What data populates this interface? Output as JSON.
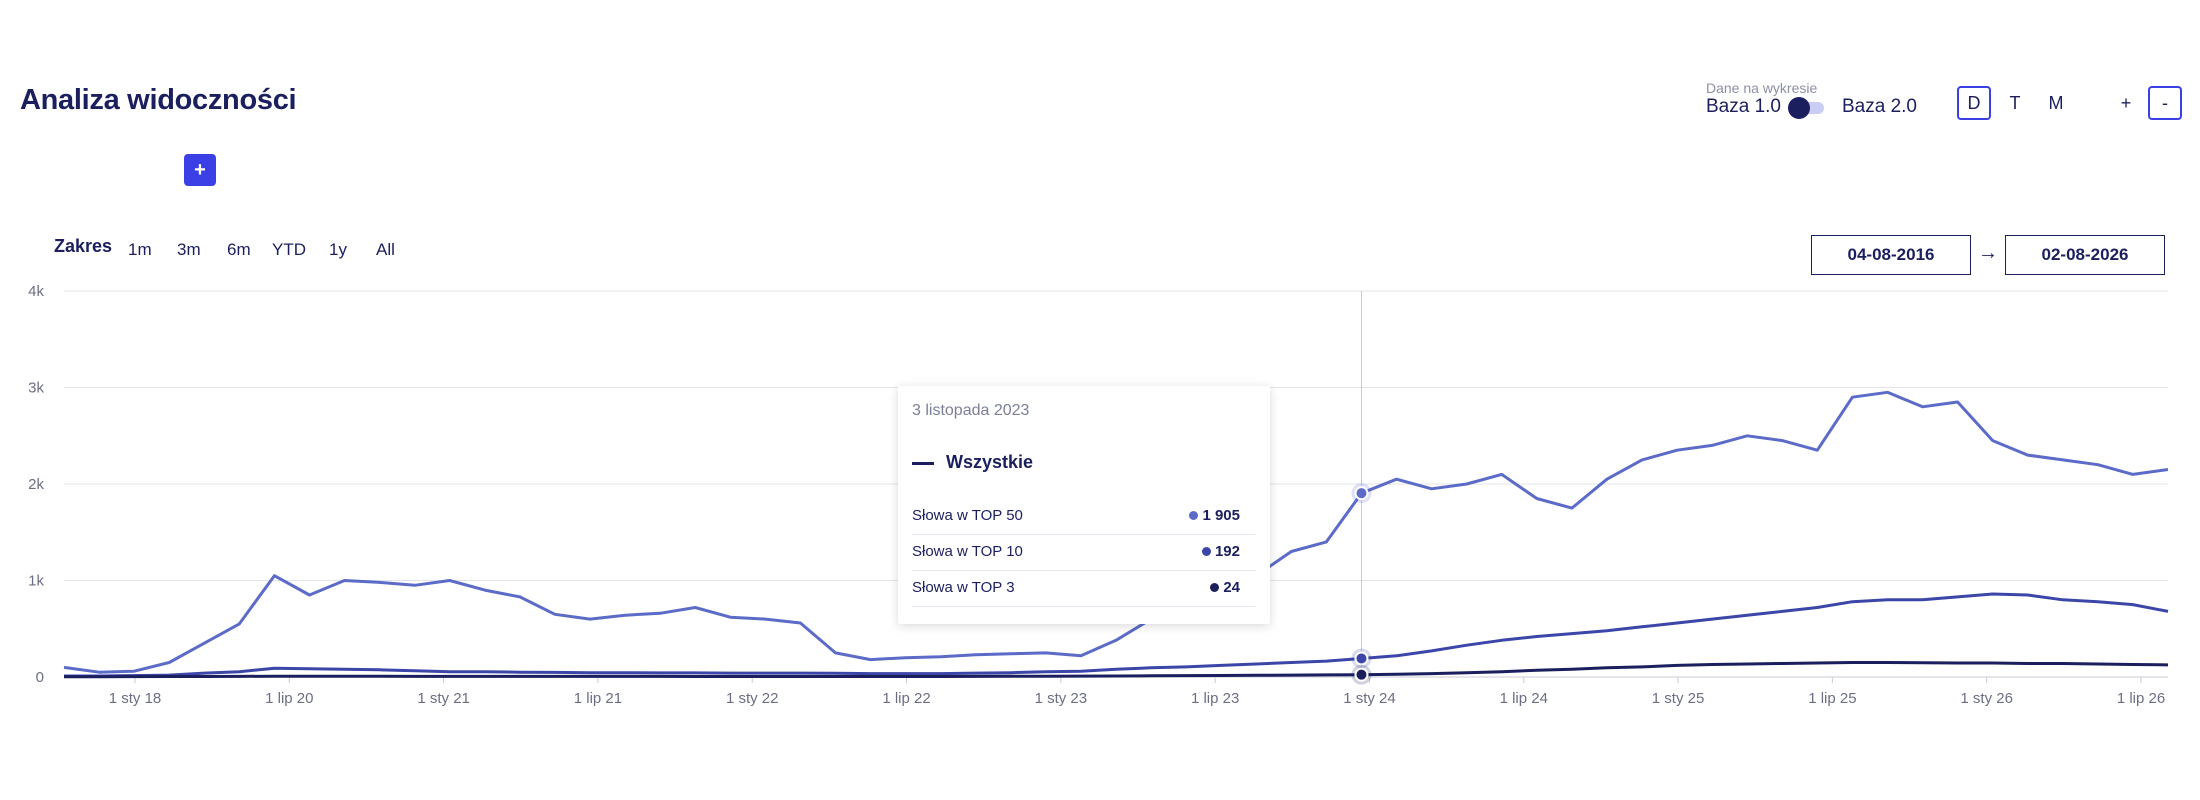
{
  "header": {
    "title": "Analiza widoczności",
    "add_label": "+",
    "toggle_caption": "Dane na wykresie",
    "base1_label": "Baza 1.0",
    "base2_label": "Baza 2.0",
    "periods": [
      "D",
      "T",
      "M"
    ],
    "zoom_in": "+",
    "zoom_out": "-"
  },
  "range": {
    "label": "Zakres",
    "buttons": [
      "1m",
      "3m",
      "6m",
      "YTD",
      "1y",
      "All"
    ],
    "date_from": "04-08-2016",
    "arrow": "→",
    "date_to": "02-08-2026"
  },
  "tooltip": {
    "date": "3 listopada 2023",
    "series_label": "Wszystkie",
    "rows": [
      {
        "label": "Słowa w TOP 50",
        "value": "1 905",
        "color": "#5c6bc8"
      },
      {
        "label": "Słowa w TOP 10",
        "value": "192",
        "color": "#3b46a8"
      },
      {
        "label": "Słowa w TOP 3",
        "value": "24",
        "color": "#1b1f5e"
      }
    ]
  },
  "chart_data": {
    "type": "line",
    "y_ticks": [
      "0",
      "1k",
      "2k",
      "3k",
      "4k"
    ],
    "ylim": [
      0,
      4000
    ],
    "x_ticks": [
      "1 sty 18",
      "1 lip 20",
      "1 sty 21",
      "1 lip 21",
      "1 sty 22",
      "1 lip 22",
      "1 sty 23",
      "1 lip 23",
      "1 sty 24",
      "1 lip 24",
      "1 sty 25",
      "1 lip 25",
      "1 sty 26",
      "1 lip 26"
    ],
    "hover_index": 37,
    "grid": true,
    "colors": {
      "top50": "#5c6bc8",
      "top10": "#3b46a8",
      "top3": "#1b1f5e",
      "grid": "#e3e4ea",
      "axis": "#c8cad6"
    },
    "x_index": [
      0,
      1,
      2,
      3,
      4,
      5,
      6,
      7,
      8,
      9,
      10,
      11,
      12,
      13,
      14,
      15,
      16,
      17,
      18,
      19,
      20,
      21,
      22,
      23,
      24,
      25,
      26,
      27,
      28,
      29,
      30,
      31,
      32,
      33,
      34,
      35,
      36,
      37,
      38,
      39,
      40,
      41,
      42,
      43,
      44,
      45,
      46,
      47,
      48,
      49,
      50,
      51,
      52,
      53,
      54,
      55,
      56,
      57,
      58,
      59,
      60
    ],
    "series": [
      {
        "key": "top50",
        "values": [
          100,
          50,
          60,
          150,
          350,
          550,
          1050,
          850,
          1000,
          980,
          950,
          1000,
          900,
          830,
          650,
          600,
          640,
          660,
          720,
          620,
          600,
          560,
          250,
          180,
          200,
          210,
          230,
          240,
          250,
          220,
          380,
          600,
          700,
          800,
          1050,
          1300,
          1400,
          1905,
          2050,
          1950,
          2000,
          2100,
          1850,
          1750,
          2050,
          2250,
          2350,
          2400,
          2500,
          2450,
          2350,
          2900,
          2950,
          2800,
          2850,
          2450,
          2300,
          2250,
          2200,
          2100,
          2150
        ]
      },
      {
        "key": "top10",
        "values": [
          10,
          10,
          15,
          20,
          40,
          55,
          90,
          85,
          80,
          75,
          65,
          55,
          55,
          50,
          48,
          45,
          45,
          42,
          42,
          40,
          40,
          40,
          38,
          35,
          35,
          35,
          40,
          45,
          55,
          60,
          80,
          95,
          105,
          120,
          135,
          150,
          165,
          192,
          220,
          270,
          330,
          380,
          420,
          450,
          480,
          520,
          560,
          600,
          640,
          680,
          720,
          780,
          800,
          800,
          830,
          860,
          850,
          800,
          780,
          750,
          680
        ]
      },
      {
        "key": "top3",
        "values": [
          3,
          3,
          4,
          5,
          5,
          6,
          8,
          7,
          7,
          7,
          6,
          6,
          6,
          6,
          6,
          6,
          6,
          6,
          5,
          5,
          5,
          5,
          5,
          5,
          5,
          5,
          6,
          7,
          8,
          9,
          10,
          12,
          14,
          16,
          18,
          20,
          22,
          24,
          28,
          35,
          45,
          55,
          70,
          80,
          95,
          105,
          120,
          130,
          135,
          140,
          145,
          150,
          150,
          148,
          145,
          145,
          140,
          140,
          135,
          130,
          125
        ]
      }
    ]
  }
}
